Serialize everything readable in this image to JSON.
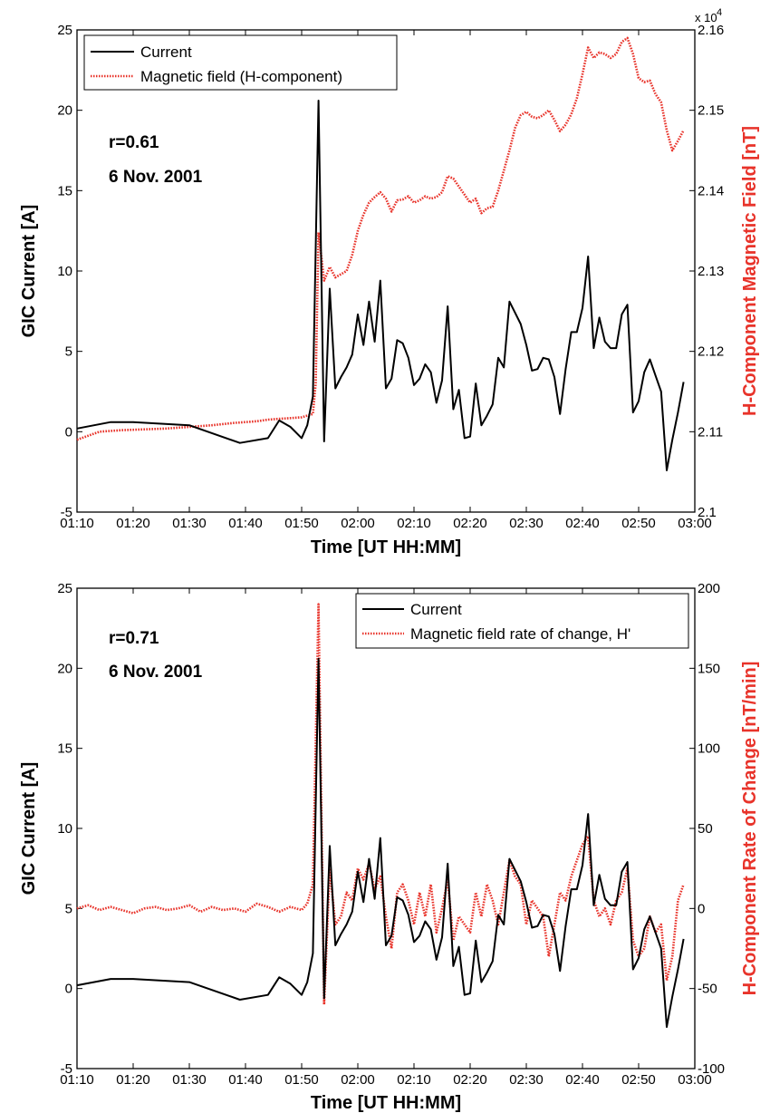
{
  "chart_data": [
    {
      "type": "line",
      "panel": "top",
      "xlabel": "Time [UT HH:MM]",
      "x_ticks": [
        "01:10",
        "01:20",
        "01:30",
        "01:40",
        "01:50",
        "02:00",
        "02:10",
        "02:20",
        "02:30",
        "02:40",
        "02:50",
        "03:00"
      ],
      "xlim": [
        "01:10",
        "03:00"
      ],
      "ylabel_left": "GIC Current [A]",
      "ylim_left": [
        -5,
        25
      ],
      "yticks_left": [
        "-5",
        "0",
        "5",
        "10",
        "15",
        "20",
        "25"
      ],
      "ylabel_right": "H-Component Magnetic Field [nT]",
      "ylim_right": [
        2.1,
        2.16
      ],
      "yticks_right": [
        "2.1",
        "2.11",
        "2.12",
        "2.13",
        "2.14",
        "2.15",
        "2.16"
      ],
      "right_multiplier_base": "x 10",
      "right_multiplier_exp": "4",
      "annotations": [
        "r=0.61",
        "6 Nov. 2001"
      ],
      "legend_position": "top-left",
      "grid": false,
      "series": [
        {
          "name": "Current",
          "axis": "left",
          "color": "#000000",
          "style": "solid",
          "x": [
            "01:10",
            "01:16",
            "01:20",
            "01:30",
            "01:39",
            "01:44",
            "01:46",
            "01:48",
            "01:50",
            "01:51",
            "01:52",
            "01:53",
            "01:54",
            "01:55",
            "01:56",
            "01:57",
            "01:58",
            "01:59",
            "02:00",
            "02:01",
            "02:02",
            "02:03",
            "02:04",
            "02:05",
            "02:06",
            "02:07",
            "02:08",
            "02:09",
            "02:10",
            "02:11",
            "02:12",
            "02:13",
            "02:14",
            "02:15",
            "02:16",
            "02:17",
            "02:18",
            "02:19",
            "02:20",
            "02:21",
            "02:22",
            "02:23",
            "02:24",
            "02:25",
            "02:26",
            "02:27",
            "02:28",
            "02:29",
            "02:30",
            "02:31",
            "02:32",
            "02:33",
            "02:34",
            "02:35",
            "02:36",
            "02:37",
            "02:38",
            "02:39",
            "02:40",
            "02:41",
            "02:42",
            "02:43",
            "02:44",
            "02:45",
            "02:46",
            "02:47",
            "02:48",
            "02:49",
            "02:50",
            "02:51",
            "02:52",
            "02:53",
            "02:54",
            "02:55",
            "02:56",
            "02:57",
            "02:58"
          ],
          "y": [
            0.2,
            0.6,
            0.6,
            0.4,
            -0.7,
            -0.4,
            0.7,
            0.3,
            -0.4,
            0.4,
            2.2,
            20.6,
            -0.6,
            8.9,
            2.7,
            3.4,
            4.0,
            4.8,
            7.3,
            5.4,
            8.1,
            5.6,
            9.4,
            2.7,
            3.3,
            5.7,
            5.5,
            4.6,
            2.9,
            3.3,
            4.2,
            3.7,
            1.8,
            3.2,
            7.8,
            1.4,
            2.6,
            -0.4,
            -0.3,
            3.0,
            0.4,
            1.0,
            1.7,
            4.6,
            4.0,
            8.1,
            7.4,
            6.7,
            5.4,
            3.8,
            3.9,
            4.6,
            4.5,
            3.4,
            1.1,
            3.9,
            6.2,
            6.2,
            7.7,
            10.9,
            5.2,
            7.1,
            5.6,
            5.2,
            5.2,
            7.3,
            7.9,
            1.2,
            1.9,
            3.7,
            4.5,
            3.5,
            2.5,
            -2.4,
            -0.5,
            1.2,
            3.1
          ]
        },
        {
          "name": "Magnetic field (H-component)",
          "axis": "right",
          "color": "#e8332a",
          "style": "dotted",
          "x": [
            "01:10",
            "01:14",
            "01:18",
            "01:22",
            "01:26",
            "01:30",
            "01:34",
            "01:38",
            "01:40",
            "01:42",
            "01:44",
            "01:46",
            "01:48",
            "01:50",
            "01:51",
            "01:52",
            "01:52.5",
            "01:53",
            "01:54",
            "01:55",
            "01:56",
            "01:57",
            "01:58",
            "01:59",
            "02:00",
            "02:01",
            "02:02",
            "02:03",
            "02:04",
            "02:05",
            "02:06",
            "02:07",
            "02:08",
            "02:09",
            "02:10",
            "02:11",
            "02:12",
            "02:13",
            "02:14",
            "02:15",
            "02:16",
            "02:17",
            "02:18",
            "02:19",
            "02:20",
            "02:21",
            "02:22",
            "02:23",
            "02:24",
            "02:25",
            "02:26",
            "02:27",
            "02:28",
            "02:29",
            "02:30",
            "02:31",
            "02:32",
            "02:33",
            "02:34",
            "02:35",
            "02:36",
            "02:37",
            "02:38",
            "02:39",
            "02:40",
            "02:41",
            "02:42",
            "02:43",
            "02:44",
            "02:45",
            "02:46",
            "02:47",
            "02:48",
            "02:49",
            "02:50",
            "02:51",
            "02:52",
            "02:53",
            "02:54",
            "02:55",
            "02:56",
            "02:57",
            "02:58"
          ],
          "y": [
            21090,
            21100,
            21102,
            21103,
            21104,
            21106,
            21108,
            21111,
            21112,
            21113,
            21115,
            21116,
            21117,
            21118,
            21120,
            21122,
            21160,
            21348,
            21288,
            21305,
            21292,
            21296,
            21300,
            21320,
            21350,
            21370,
            21385,
            21392,
            21398,
            21390,
            21374,
            21388,
            21389,
            21393,
            21385,
            21388,
            21393,
            21390,
            21392,
            21398,
            21418,
            21415,
            21405,
            21395,
            21385,
            21390,
            21372,
            21378,
            21380,
            21400,
            21425,
            21450,
            21478,
            21494,
            21498,
            21492,
            21490,
            21494,
            21500,
            21488,
            21474,
            21482,
            21495,
            21515,
            21545,
            21578,
            21565,
            21572,
            21570,
            21565,
            21570,
            21585,
            21590,
            21570,
            21540,
            21535,
            21537,
            21520,
            21510,
            21475,
            21450,
            21462,
            21475
          ]
        }
      ]
    },
    {
      "type": "line",
      "panel": "bottom",
      "xlabel": "Time [UT HH:MM]",
      "x_ticks": [
        "01:10",
        "01:20",
        "01:30",
        "01:40",
        "01:50",
        "02:00",
        "02:10",
        "02:20",
        "02:30",
        "02:40",
        "02:50",
        "03:00"
      ],
      "xlim": [
        "01:10",
        "03:00"
      ],
      "ylabel_left": "GIC Current [A]",
      "ylim_left": [
        -5,
        25
      ],
      "yticks_left": [
        "-5",
        "0",
        "5",
        "10",
        "15",
        "20",
        "25"
      ],
      "ylabel_right": "H-Component Rate of Change [nT/min]",
      "ylim_right": [
        -100,
        200
      ],
      "yticks_right": [
        "-100",
        "-50",
        "0",
        "50",
        "100",
        "150",
        "200"
      ],
      "annotations": [
        "r=0.71",
        "6 Nov. 2001"
      ],
      "legend_position": "top-right",
      "grid": false,
      "series": [
        {
          "name": "Current",
          "axis": "left",
          "color": "#000000",
          "style": "solid",
          "x": [
            "01:10",
            "01:16",
            "01:20",
            "01:30",
            "01:39",
            "01:44",
            "01:46",
            "01:48",
            "01:50",
            "01:51",
            "01:52",
            "01:53",
            "01:54",
            "01:55",
            "01:56",
            "01:57",
            "01:58",
            "01:59",
            "02:00",
            "02:01",
            "02:02",
            "02:03",
            "02:04",
            "02:05",
            "02:06",
            "02:07",
            "02:08",
            "02:09",
            "02:10",
            "02:11",
            "02:12",
            "02:13",
            "02:14",
            "02:15",
            "02:16",
            "02:17",
            "02:18",
            "02:19",
            "02:20",
            "02:21",
            "02:22",
            "02:23",
            "02:24",
            "02:25",
            "02:26",
            "02:27",
            "02:28",
            "02:29",
            "02:30",
            "02:31",
            "02:32",
            "02:33",
            "02:34",
            "02:35",
            "02:36",
            "02:37",
            "02:38",
            "02:39",
            "02:40",
            "02:41",
            "02:42",
            "02:43",
            "02:44",
            "02:45",
            "02:46",
            "02:47",
            "02:48",
            "02:49",
            "02:50",
            "02:51",
            "02:52",
            "02:53",
            "02:54",
            "02:55",
            "02:56",
            "02:57",
            "02:58"
          ],
          "y": [
            0.2,
            0.6,
            0.6,
            0.4,
            -0.7,
            -0.4,
            0.7,
            0.3,
            -0.4,
            0.4,
            2.2,
            20.6,
            -0.6,
            8.9,
            2.7,
            3.4,
            4.0,
            4.8,
            7.3,
            5.4,
            8.1,
            5.6,
            9.4,
            2.7,
            3.3,
            5.7,
            5.5,
            4.6,
            2.9,
            3.3,
            4.2,
            3.7,
            1.8,
            3.2,
            7.8,
            1.4,
            2.6,
            -0.4,
            -0.3,
            3.0,
            0.4,
            1.0,
            1.7,
            4.6,
            4.0,
            8.1,
            7.4,
            6.7,
            5.4,
            3.8,
            3.9,
            4.6,
            4.5,
            3.4,
            1.1,
            3.9,
            6.2,
            6.2,
            7.7,
            10.9,
            5.2,
            7.1,
            5.6,
            5.2,
            5.2,
            7.3,
            7.9,
            1.2,
            1.9,
            3.7,
            4.5,
            3.5,
            2.5,
            -2.4,
            -0.5,
            1.2,
            3.1
          ]
        },
        {
          "name": "Magnetic field rate of change, H'",
          "axis": "right",
          "color": "#e8332a",
          "style": "dotted",
          "x": [
            "01:10",
            "01:12",
            "01:14",
            "01:16",
            "01:18",
            "01:20",
            "01:22",
            "01:24",
            "01:26",
            "01:28",
            "01:30",
            "01:32",
            "01:34",
            "01:36",
            "01:38",
            "01:40",
            "01:42",
            "01:44",
            "01:46",
            "01:48",
            "01:50",
            "01:51",
            "01:52",
            "01:53",
            "01:54",
            "01:55",
            "01:56",
            "01:57",
            "01:58",
            "01:59",
            "02:00",
            "02:01",
            "02:02",
            "02:03",
            "02:04",
            "02:05",
            "02:06",
            "02:07",
            "02:08",
            "02:09",
            "02:10",
            "02:11",
            "02:12",
            "02:13",
            "02:14",
            "02:15",
            "02:16",
            "02:17",
            "02:18",
            "02:19",
            "02:20",
            "02:21",
            "02:22",
            "02:23",
            "02:24",
            "02:25",
            "02:26",
            "02:27",
            "02:28",
            "02:29",
            "02:30",
            "02:31",
            "02:32",
            "02:33",
            "02:34",
            "02:35",
            "02:36",
            "02:37",
            "02:38",
            "02:39",
            "02:40",
            "02:41",
            "02:42",
            "02:43",
            "02:44",
            "02:45",
            "02:46",
            "02:47",
            "02:48",
            "02:49",
            "02:50",
            "02:51",
            "02:52",
            "02:53",
            "02:54",
            "02:55",
            "02:56",
            "02:57",
            "02:58"
          ],
          "y": [
            0,
            2,
            -1,
            1,
            -1,
            -3,
            0,
            1,
            -1,
            0,
            2,
            -2,
            1,
            -1,
            0,
            -2,
            3,
            1,
            -2,
            1,
            -1,
            3,
            15,
            190,
            -60,
            25,
            -10,
            -5,
            10,
            5,
            25,
            18,
            28,
            12,
            20,
            -5,
            -25,
            10,
            15,
            5,
            -10,
            10,
            -5,
            15,
            -15,
            0,
            18,
            -20,
            -5,
            -10,
            -15,
            10,
            -5,
            15,
            5,
            -10,
            10,
            30,
            20,
            15,
            -10,
            5,
            0,
            -5,
            -30,
            -10,
            10,
            5,
            20,
            30,
            40,
            45,
            5,
            -5,
            0,
            -10,
            5,
            10,
            25,
            -20,
            -30,
            -25,
            -5,
            -15,
            -10,
            -45,
            -30,
            5,
            15
          ]
        }
      ]
    }
  ]
}
